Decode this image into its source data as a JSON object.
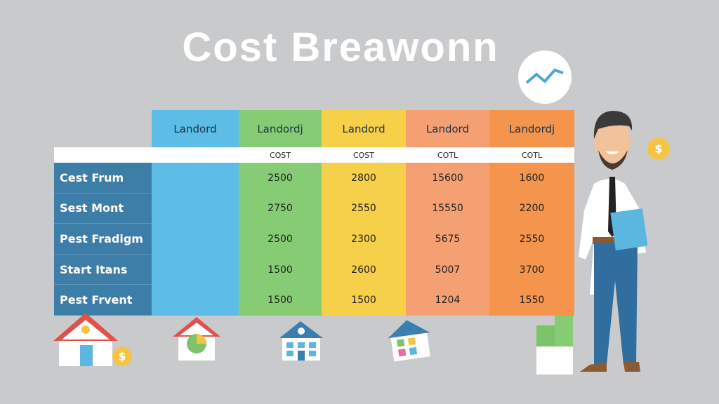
{
  "title": "Cost Breawonn",
  "table": {
    "headers": [
      "Landord",
      "Landordj",
      "Landord",
      "Landord",
      "Landordj"
    ],
    "subheaders": [
      "COST",
      "COST",
      "COTL",
      "COTL"
    ],
    "rows": [
      {
        "label": "Cest Frum",
        "values": [
          "2500",
          "2800",
          "15600",
          "1600"
        ]
      },
      {
        "label": "Sest Mont",
        "values": [
          "2750",
          "2550",
          "15550",
          "2200"
        ]
      },
      {
        "label": "Pest Fradigm",
        "values": [
          "2500",
          "2300",
          "5675",
          "2550"
        ]
      },
      {
        "label": "Start Itans",
        "values": [
          "1500",
          "2600",
          "5007",
          "3700"
        ]
      },
      {
        "label": "Pest Frvent",
        "values": [
          "1500",
          "1500",
          "1204",
          "1550"
        ]
      }
    ]
  },
  "coins": [
    "$",
    "$"
  ]
}
